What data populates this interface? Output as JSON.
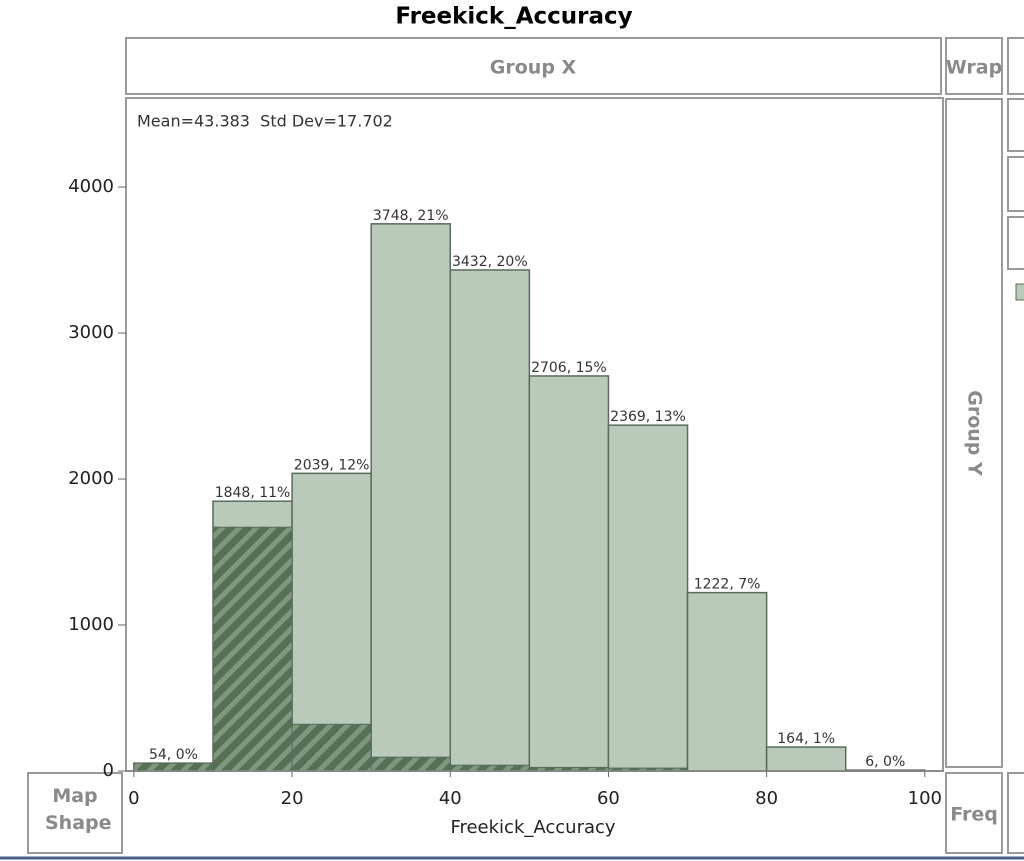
{
  "chart_data": {
    "type": "histogram",
    "title": "Freekick_Accuracy",
    "annotation": "Mean=43.383  Std Dev=17.702",
    "x_label": "Freekick_Accuracy",
    "bins": [
      0,
      10,
      20,
      30,
      40,
      50,
      60,
      70,
      80,
      90,
      100
    ],
    "series": [
      {
        "color": "#b9cabb",
        "values": [
          54,
          1848,
          2039,
          3748,
          3432,
          2706,
          2369,
          1222,
          164,
          6
        ],
        "value_labels": [
          "54, 0%",
          "1848, 11%",
          "2039, 12%",
          "3748, 21%",
          "3432, 20%",
          "2706, 15%",
          "2369, 13%",
          "1222, 7%",
          "164, 1%",
          "6, 0%"
        ]
      },
      {
        "color": "#557155",
        "values": [
          54,
          1670,
          320,
          95,
          40,
          25,
          20,
          0,
          0,
          0
        ]
      }
    ],
    "xlim": [
      -1,
      102.3
    ],
    "xticks": [
      0,
      20,
      40,
      60,
      80,
      100
    ],
    "ylim": [
      0,
      4610
    ],
    "yticks": [
      0,
      1000,
      2000,
      3000,
      4000
    ],
    "panels": {
      "group_x": "Group X",
      "wrap": "Wrap",
      "group_y": "Group Y",
      "map_shape": "Map Shape",
      "freq": "Freq"
    }
  }
}
